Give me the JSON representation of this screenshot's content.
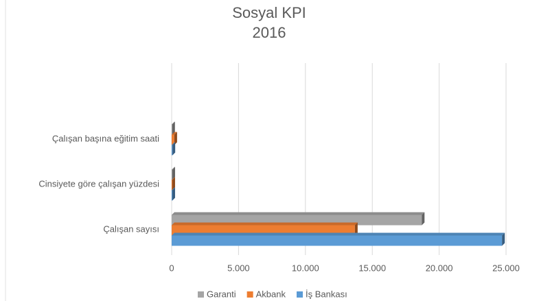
{
  "chart_data": {
    "type": "hbar",
    "title": "Sosyal KPI",
    "subtitle": "2016",
    "categories": [
      "Çalışan sayısı",
      "Cinsiyete göre çalışan yüzdesi",
      "Çalışan başına eğitim saati"
    ],
    "series": [
      {
        "name": "Garanti",
        "color": "#a5a5a5",
        "values": [
          18700,
          50,
          40
        ]
      },
      {
        "name": "Akbank",
        "color": "#ed7d31",
        "values": [
          13700,
          50,
          200
        ]
      },
      {
        "name": "İş Bankası",
        "color": "#5b9bd5",
        "values": [
          24700,
          50,
          60
        ]
      }
    ],
    "xlim": [
      0,
      25000
    ],
    "xticks": [
      0,
      {
        "value": 5000,
        "label": "5.000"
      },
      {
        "value": 10000,
        "label": "10.000"
      },
      {
        "value": 15000,
        "label": "15.000"
      },
      {
        "value": 20000,
        "label": "20.000"
      },
      {
        "value": 25000,
        "label": "25.000"
      }
    ],
    "grid": true,
    "legend": "bottom"
  }
}
